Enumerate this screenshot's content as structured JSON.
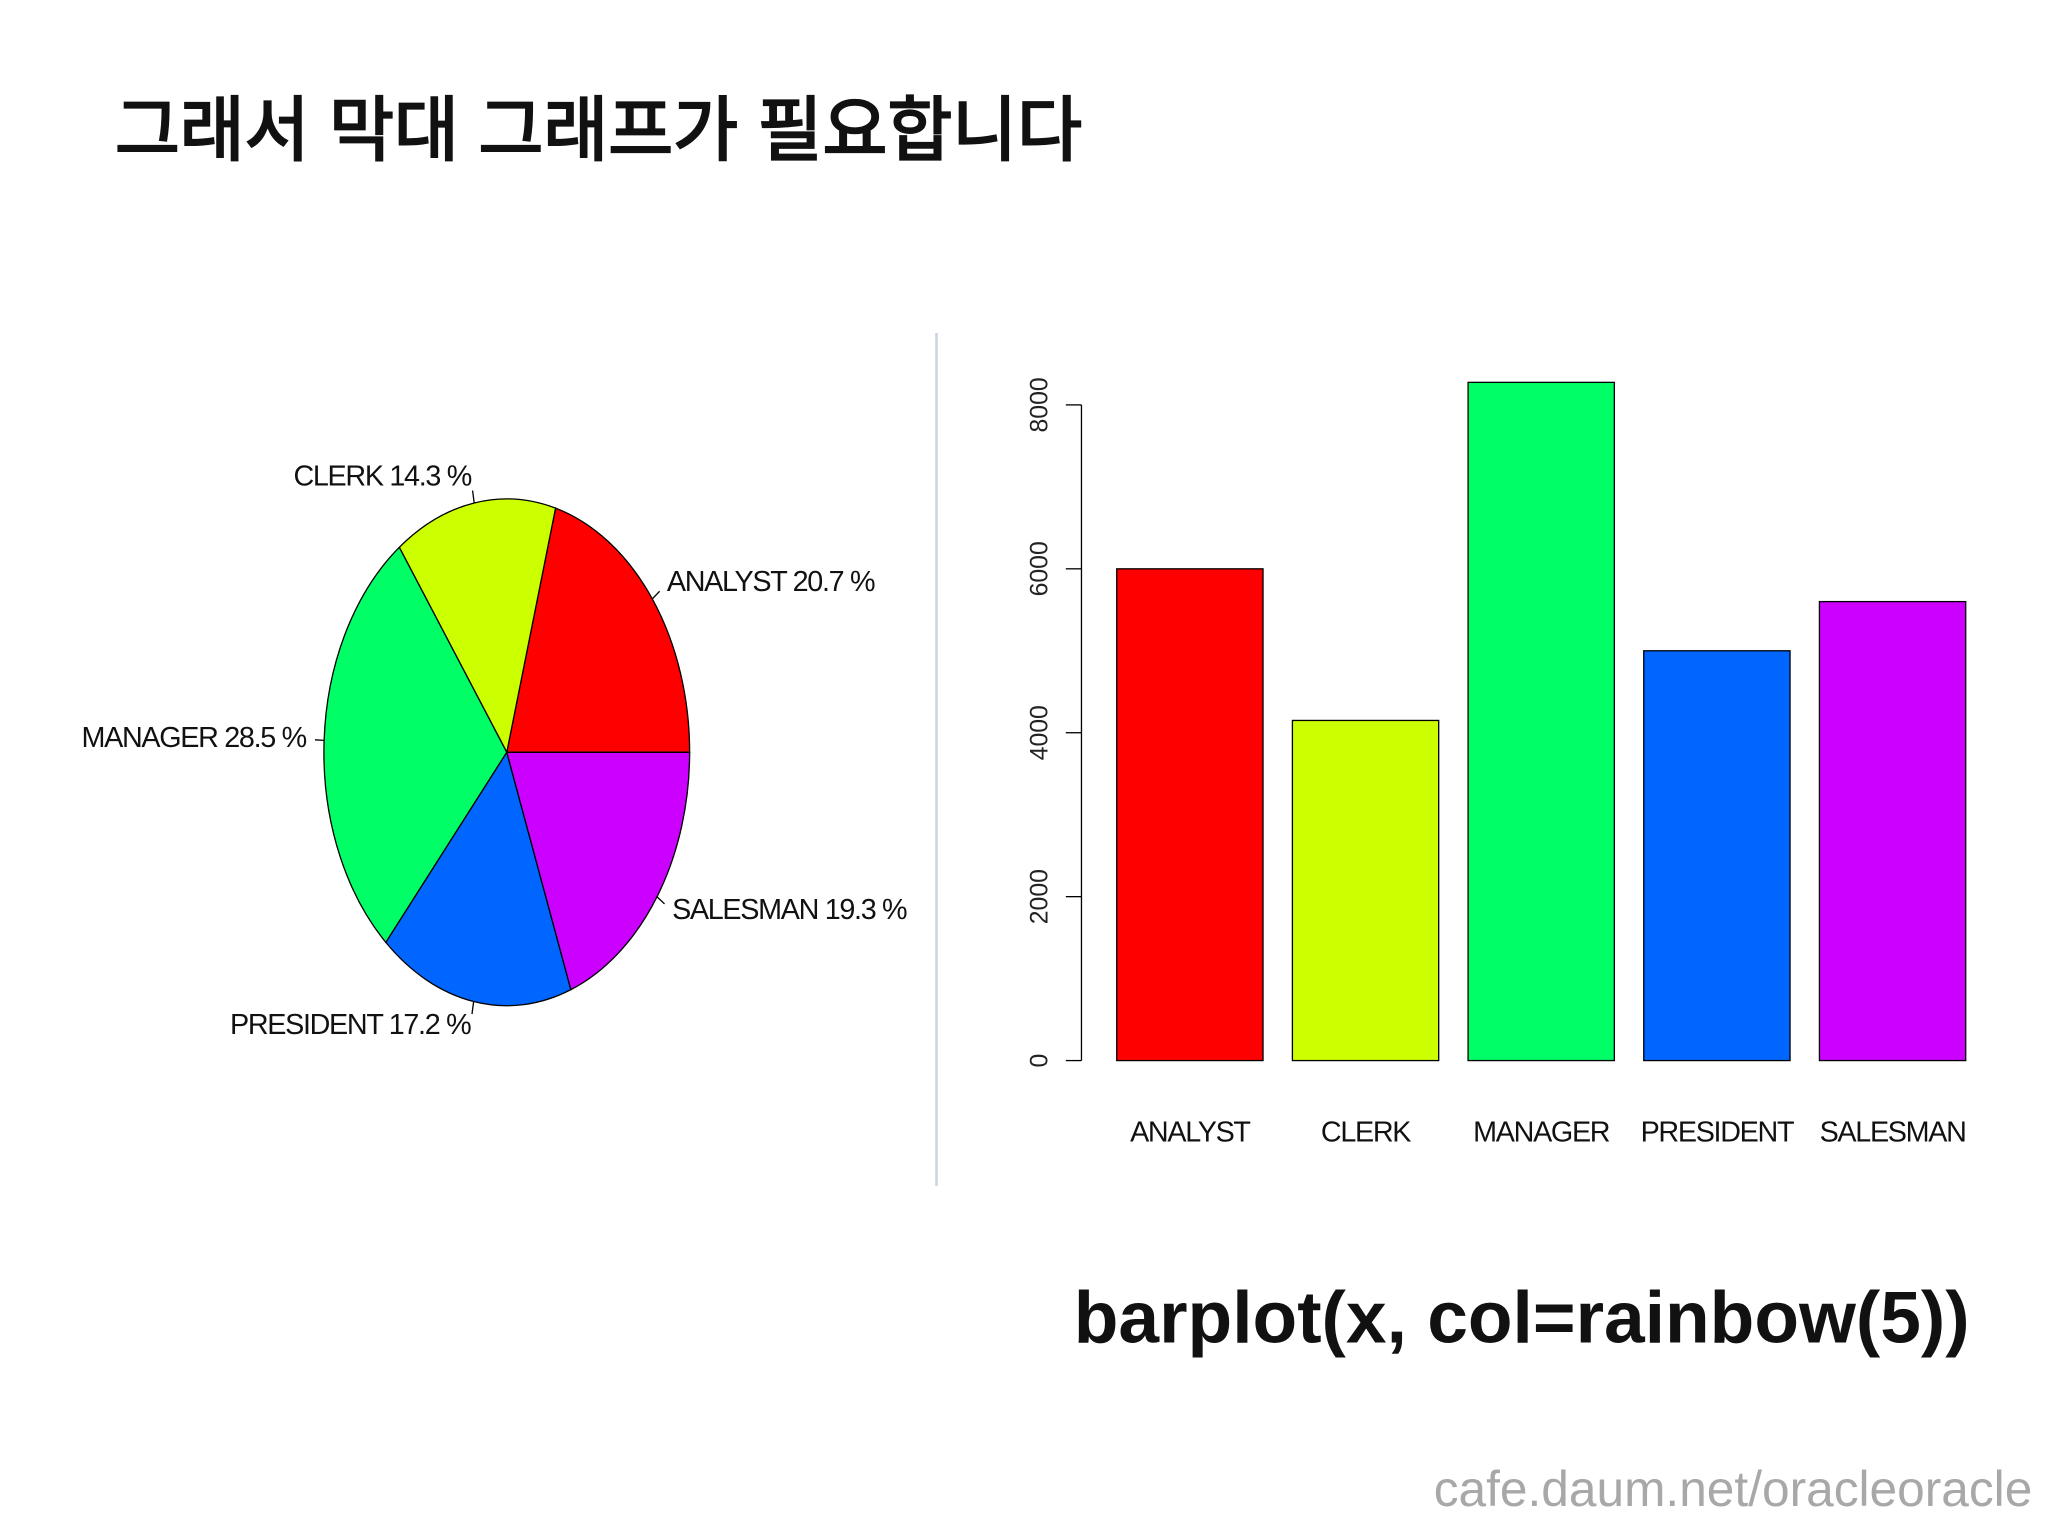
{
  "title": "그래서 막대 그래프가 필요합니다",
  "code": "barplot(x, col=rainbow(5))",
  "footer": "cafe.daum.net/oracleoracle",
  "chart_data": [
    {
      "type": "pie",
      "labels": [
        "ANALYST 20.7 %",
        "CLERK 14.3 %",
        "MANAGER 28.5 %",
        "PRESIDENT 17.2 %",
        "SALESMAN 19.3 %"
      ],
      "values": [
        20.7,
        14.3,
        28.5,
        17.2,
        19.3
      ],
      "colors": [
        "#FF0000",
        "#CCFF00",
        "#00FF66",
        "#0066FF",
        "#CC00FF"
      ]
    },
    {
      "type": "bar",
      "categories": [
        "ANALYST",
        "CLERK",
        "MANAGER",
        "PRESIDENT",
        "SALESMAN"
      ],
      "values": [
        6000,
        4150,
        8275,
        5000,
        5600
      ],
      "colors": [
        "#FF0000",
        "#CCFF00",
        "#00FF66",
        "#0066FF",
        "#CC00FF"
      ],
      "ylim": [
        0,
        8000
      ],
      "yticks": [
        0,
        2000,
        4000,
        6000,
        8000
      ]
    }
  ]
}
